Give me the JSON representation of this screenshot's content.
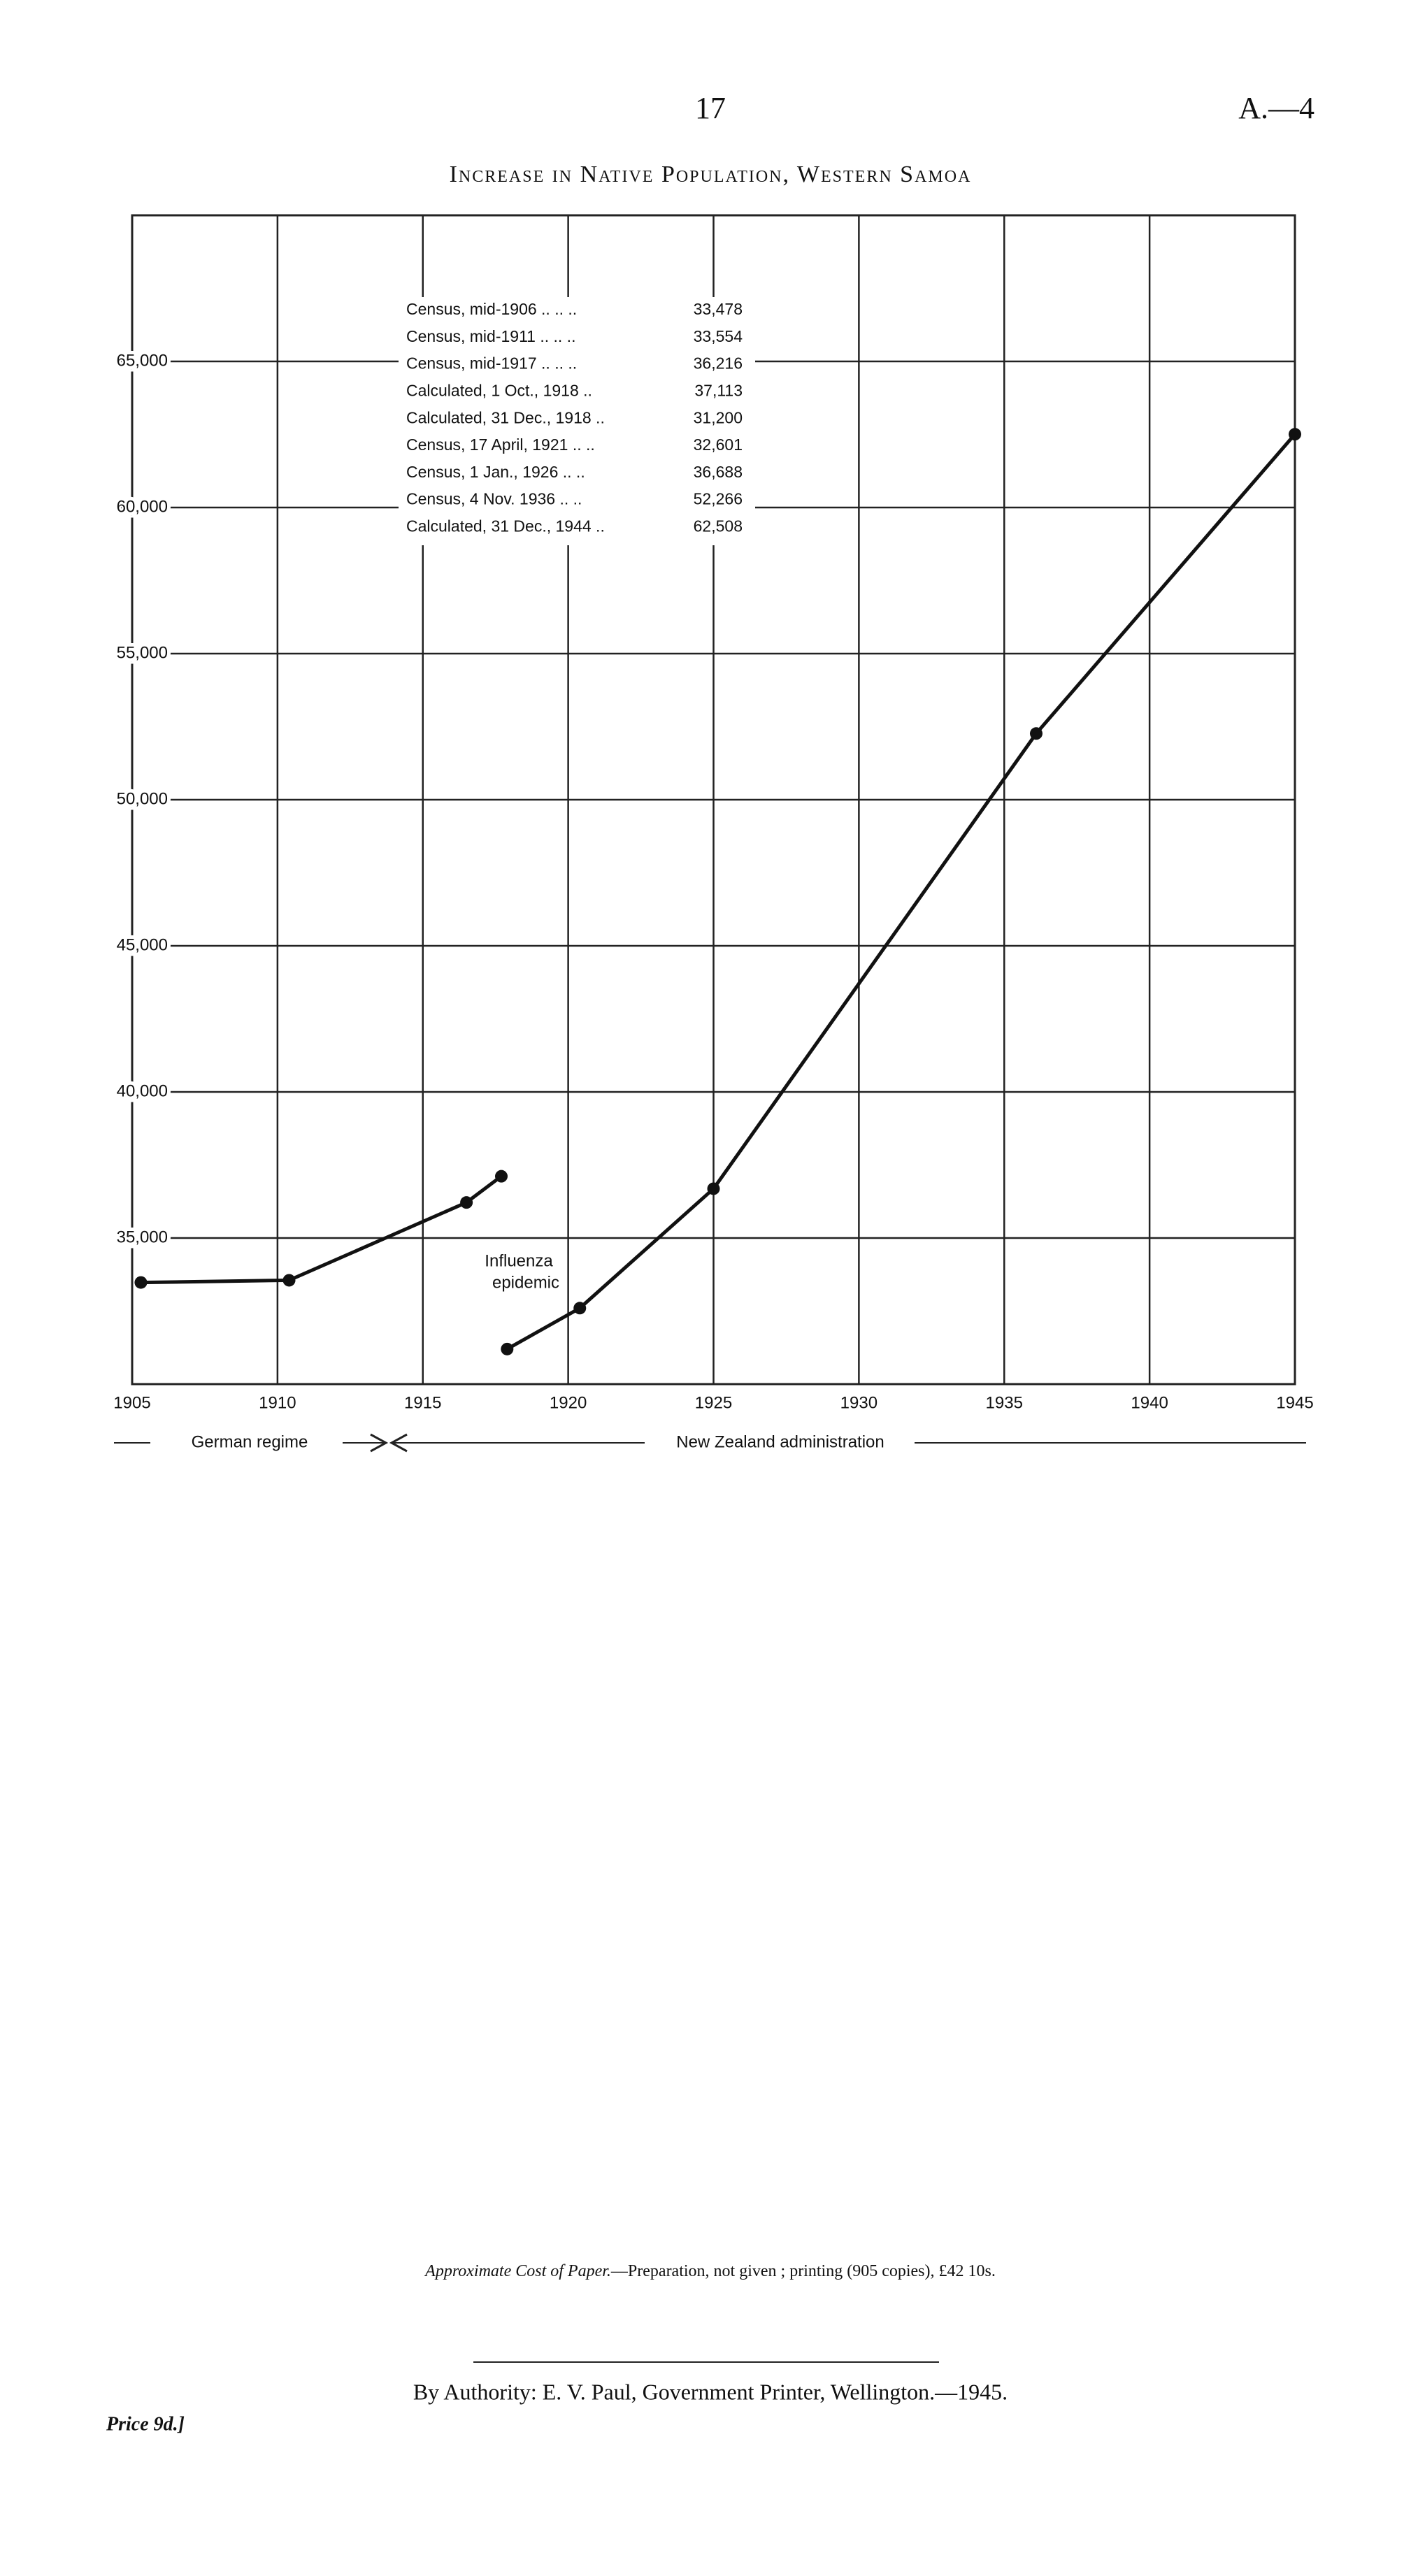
{
  "header": {
    "page_number": "17",
    "reference": "A.—4"
  },
  "chart_data": {
    "type": "line",
    "title": "Increase in Native Population, Western Samoa",
    "series": [
      {
        "name": "German regime",
        "color": "#111111",
        "x": [
          1905.3,
          1910.4,
          1916.5,
          1917.7
        ],
        "values": [
          33478,
          33554,
          36216,
          37113
        ]
      },
      {
        "name": "New Zealand administration",
        "color": "#111111",
        "x": [
          1917.9,
          1920.4,
          1925.0,
          1936.1,
          1945.0
        ],
        "values": [
          31200,
          32601,
          36688,
          52266,
          62508
        ]
      }
    ],
    "xlim": [
      1905,
      1945
    ],
    "xticks": [
      1905,
      1910,
      1915,
      1920,
      1925,
      1930,
      1935,
      1940,
      1945
    ],
    "ylim": [
      30000,
      70000
    ],
    "yticks": [
      {
        "value": 35000,
        "label": "35,000"
      },
      {
        "value": 40000,
        "label": "40,000"
      },
      {
        "value": 45000,
        "label": "45,000"
      },
      {
        "value": 50000,
        "label": "50,000"
      },
      {
        "value": 55000,
        "label": "55,000"
      },
      {
        "value": 60000,
        "label": "60,000"
      },
      {
        "value": 65000,
        "label": "65,000"
      }
    ],
    "grid": true,
    "annotations": [
      "Influenza",
      "epidemic"
    ],
    "table": [
      {
        "label": "Census, mid-1906 .. .. ..",
        "value": "33,478"
      },
      {
        "label": "Census, mid-1911 .. .. ..",
        "value": "33,554"
      },
      {
        "label": "Census, mid-1917 .. .. ..",
        "value": "36,216"
      },
      {
        "label": "Calculated, 1 Oct., 1918 ..",
        "value": "37,113"
      },
      {
        "label": "Calculated, 31 Dec., 1918 ..",
        "value": "31,200"
      },
      {
        "label": "Census, 17 April, 1921 .. ..",
        "value": "32,601"
      },
      {
        "label": "Census, 1 Jan., 1926 .. ..",
        "value": "36,688"
      },
      {
        "label": "Census, 4 Nov. 1936 .. ..",
        "value": "52,266"
      },
      {
        "label": "Calculated, 31 Dec., 1944 ..",
        "value": "62,508"
      }
    ]
  },
  "footer": {
    "cost_note_label": "Approximate Cost of Paper.",
    "cost_note": "—Preparation, not given ; printing (905 copies), £42 10s.",
    "authority": "By Authority: E. V. Paul, Government Printer, Wellington.—1945.",
    "price": "Price 9d.]"
  }
}
